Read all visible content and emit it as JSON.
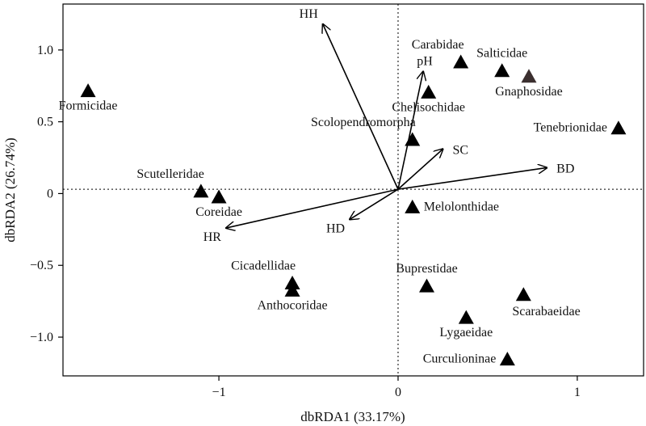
{
  "chart_data": {
    "type": "scatter",
    "title": "",
    "xlabel": "dbRDA1 (33.17%)",
    "ylabel": "dbRDA2 (26.74%)",
    "xlim": [
      -1.87,
      1.37
    ],
    "ylim": [
      -1.27,
      1.32
    ],
    "xticks": [
      -1,
      0,
      1
    ],
    "xtick_labels": [
      "−1",
      "0",
      "1"
    ],
    "yticks": [
      -1.0,
      -0.5,
      0,
      0.5,
      1.0
    ],
    "ytick_labels": [
      "−1.0",
      "−0.5",
      "0",
      "0.5",
      "1.0"
    ],
    "reference_lines": {
      "x": 0,
      "y": 0.03,
      "style": "dotted"
    },
    "grid": false,
    "legend": "none",
    "marker_color": "#000000",
    "species": [
      {
        "name": "Formicidae",
        "x": -1.73,
        "y": 0.72,
        "label_pos": "below"
      },
      {
        "name": "Scutelleridae",
        "x": -1.1,
        "y": 0.02,
        "label_pos": "above-left"
      },
      {
        "name": "Coreidae",
        "x": -1.0,
        "y": -0.02,
        "label_pos": "below"
      },
      {
        "name": "Cicadellidae",
        "x": -0.59,
        "y": -0.62,
        "label_pos": "above-left"
      },
      {
        "name": "Anthocoridae",
        "x": -0.59,
        "y": -0.67,
        "label_pos": "below"
      },
      {
        "name": "Carabidae",
        "x": 0.35,
        "y": 0.92,
        "label_pos": "above-left"
      },
      {
        "name": "Salticidae",
        "x": 0.58,
        "y": 0.86,
        "label_pos": "above"
      },
      {
        "name": "Gnaphosidae",
        "x": 0.73,
        "y": 0.82,
        "label_pos": "below",
        "color": "#3b2f2f"
      },
      {
        "name": "Chelisochidae",
        "x": 0.17,
        "y": 0.71,
        "label_pos": "below"
      },
      {
        "name": "Tenebrionidae",
        "x": 1.23,
        "y": 0.46,
        "label_pos": "left"
      },
      {
        "name": "Scolopendromorpha",
        "x": 0.08,
        "y": 0.38,
        "label_pos": "above-left"
      },
      {
        "name": "Melolonthidae",
        "x": 0.08,
        "y": -0.09,
        "label_pos": "right"
      },
      {
        "name": "Buprestidae",
        "x": 0.16,
        "y": -0.64,
        "label_pos": "above"
      },
      {
        "name": "Scarabaeidae",
        "x": 0.7,
        "y": -0.7,
        "label_pos": "below-right"
      },
      {
        "name": "Lygaeidae",
        "x": 0.38,
        "y": -0.86,
        "label_pos": "below"
      },
      {
        "name": "Curculioninae",
        "x": 0.61,
        "y": -1.15,
        "label_pos": "left"
      }
    ],
    "vectors": [
      {
        "name": "HH",
        "x": -0.42,
        "y": 1.18,
        "label_pos": "above-left"
      },
      {
        "name": "pH",
        "x": 0.14,
        "y": 0.85,
        "label_pos": "above"
      },
      {
        "name": "SC",
        "x": 0.25,
        "y": 0.31,
        "label_pos": "right"
      },
      {
        "name": "BD",
        "x": 0.83,
        "y": 0.18,
        "label_pos": "right"
      },
      {
        "name": "HD",
        "x": -0.27,
        "y": -0.18,
        "label_pos": "below-left"
      },
      {
        "name": "HR",
        "x": -0.96,
        "y": -0.24,
        "label_pos": "below-left"
      }
    ],
    "vector_origin": {
      "x": 0,
      "y": 0.03
    }
  }
}
